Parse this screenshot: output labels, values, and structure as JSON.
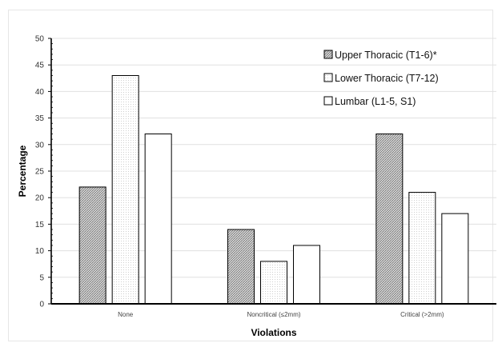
{
  "chart_data": {
    "type": "bar",
    "title": "",
    "xlabel": "Violations",
    "ylabel": "Percentage",
    "ylim": [
      0,
      50
    ],
    "yticks": [
      0,
      5,
      10,
      15,
      20,
      25,
      30,
      35,
      40,
      45,
      50
    ],
    "grid": true,
    "legend_position": "top-right",
    "categories": [
      "None",
      "Noncritical (≤2mm)",
      "Critical (>2mm)"
    ],
    "series": [
      {
        "name": "Upper Thoracic (T1-6)*",
        "values": [
          22,
          14,
          32
        ],
        "fill": "hatched-dark"
      },
      {
        "name": "Lower Thoracic (T7-12)",
        "values": [
          43,
          8,
          21
        ],
        "fill": "dotted-light"
      },
      {
        "name": "Lumbar (L1-5, S1)",
        "values": [
          32,
          11,
          17
        ],
        "fill": "white"
      }
    ]
  },
  "colors": {
    "bar_outline": "#000000",
    "grid": "#e0e0e0",
    "axis": "#000000"
  }
}
